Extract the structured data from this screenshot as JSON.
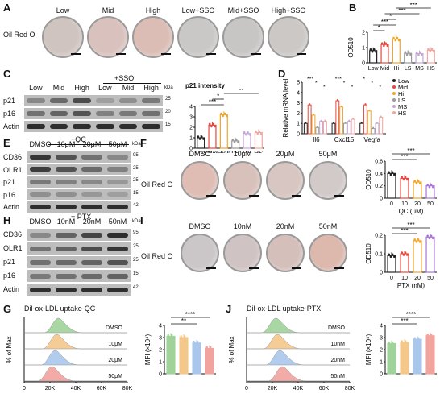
{
  "panels": {
    "A": {
      "letter": "A",
      "row_label": "Oil Red O",
      "columns": [
        "Low",
        "Mid",
        "High",
        "Low+SSO",
        "Mid+SSO",
        "High+SSO"
      ],
      "well_tints": [
        "#cfc4c0",
        "#d9c1bd",
        "#dbbdb5",
        "#c9c8c7",
        "#c8c6c5",
        "#cbc8c6"
      ]
    },
    "B": {
      "letter": "B"
    },
    "C": {
      "letter": "C",
      "group_label": "+SSO",
      "columns": [
        "Low",
        "Mid",
        "High",
        "Low",
        "Mid",
        "High"
      ],
      "rows": [
        "p21",
        "p16",
        "Actin"
      ],
      "markers": [
        "25",
        "20",
        "15",
        "42"
      ],
      "kda": "kDa"
    },
    "p21int": {
      "title": "p21 intensity"
    },
    "D": {
      "letter": "D"
    },
    "E": {
      "letter": "E",
      "group_label": "+QC",
      "columns": [
        "DMSO",
        "10μM",
        "20μM",
        "50μM"
      ],
      "rows": [
        "CD36",
        "OLR1",
        "p21",
        "p16",
        "Actin"
      ],
      "markers": [
        "95",
        "25",
        "25",
        "15",
        "42"
      ],
      "kda": "kDa"
    },
    "F": {
      "letter": "F",
      "row_label": "Oil Red O",
      "columns": [
        "DMSO",
        "10μM",
        "20μM",
        "50μM"
      ],
      "well_tints": [
        "#dfbdb4",
        "#d9c1bb",
        "#d7c6c2",
        "#d2cac8"
      ]
    },
    "H": {
      "letter": "H",
      "group_label": "+ PTX",
      "columns": [
        "DMSO",
        "10nM",
        "20nM",
        "50nM"
      ],
      "rows": [
        "CD36",
        "OLR1",
        "p21",
        "p16",
        "Actin"
      ],
      "markers": [
        "95",
        "25",
        "25",
        "15",
        "42"
      ],
      "kda": "kDa"
    },
    "I": {
      "letter": "I",
      "row_label": "Oil Red O",
      "columns": [
        "DMSO",
        "10nM",
        "20nM",
        "50nM"
      ],
      "well_tints": [
        "#cbc6c8",
        "#cfc3c3",
        "#d5bfba",
        "#dcb8ad"
      ]
    },
    "G": {
      "letter": "G",
      "title": "Dil-ox-LDL uptake-QC",
      "ylabel": "% of Max",
      "xlabel_ticks": [
        "0",
        "20K",
        "40K",
        "60K",
        "80K"
      ],
      "tracks": [
        "DMSO",
        "10μM",
        "20μM",
        "50μM"
      ],
      "track_colors": [
        "#9fd39a",
        "#f4c78a",
        "#a9c7ea",
        "#f2a39e"
      ]
    },
    "J": {
      "letter": "J",
      "title": "Dil-ox-LDL uptake-PTX",
      "ylabel": "% of Max",
      "xlabel_ticks": [
        "0",
        "20K",
        "40K",
        "60K",
        "80K"
      ],
      "tracks": [
        "DMSO",
        "10nM",
        "20nM",
        "50nM"
      ],
      "track_colors": [
        "#9fd39a",
        "#f4c78a",
        "#a9c7ea",
        "#f2a39e"
      ]
    }
  },
  "chart_data": [
    {
      "id": "B",
      "type": "bar",
      "categories": [
        "Low",
        "Mid",
        "Hi",
        "LS",
        "MS",
        "HS"
      ],
      "values": [
        0.8,
        1.2,
        1.55,
        0.62,
        0.6,
        0.82
      ],
      "ylabel": "OD510",
      "ylim": [
        0,
        2
      ],
      "yticks": [
        "0",
        "1",
        "2"
      ],
      "colors": [
        "#222222",
        "#e8463c",
        "#f0a628",
        "#9b9b9b",
        "#c6a6d8",
        "#f4a6a0"
      ],
      "sig": [
        {
          "from": 0,
          "to": 1,
          "label": "*"
        },
        {
          "from": 0,
          "to": 2,
          "label": "***"
        },
        {
          "from": 1,
          "to": 2,
          "label": "*"
        },
        {
          "from": 1,
          "to": 4,
          "label": "***"
        },
        {
          "from": 2,
          "to": 5,
          "label": "***"
        }
      ]
    },
    {
      "id": "p21",
      "type": "bar",
      "categories": [
        "Low",
        "Mid",
        "High",
        "LS",
        "MS",
        "HS"
      ],
      "values": [
        1.0,
        2.2,
        3.2,
        0.7,
        1.4,
        1.5
      ],
      "ylim": [
        0,
        4
      ],
      "yticks": [
        "0",
        "1",
        "2",
        "3",
        "4"
      ],
      "colors": [
        "#222222",
        "#e8463c",
        "#f0a628",
        "#9b9b9b",
        "#c6a6d8",
        "#f4a6a0"
      ],
      "sig": [
        {
          "from": 0,
          "to": 2,
          "label": "***"
        },
        {
          "from": 1,
          "to": 2,
          "label": "*"
        },
        {
          "from": 2,
          "to": 5,
          "label": "**"
        },
        {
          "from": 3,
          "to": 5,
          "label": "**"
        }
      ]
    },
    {
      "id": "D",
      "type": "bar",
      "groups": [
        "Il6",
        "Cxcl15",
        "Vegfa"
      ],
      "series_names": [
        "Low",
        "Mid",
        "Hi",
        "LS",
        "MS",
        "HS"
      ],
      "values": [
        [
          1.0,
          2.8,
          1.8,
          0.6,
          1.2,
          1.2
        ],
        [
          1.0,
          3.2,
          2.6,
          1.0,
          1.2,
          1.4
        ],
        [
          1.0,
          2.8,
          2.2,
          0.5,
          1.0,
          1.6
        ]
      ],
      "ylabel": "Relative mRNA level",
      "ylim": [
        0,
        5
      ],
      "yticks": [
        "0",
        "1",
        "2",
        "3",
        "4",
        "5"
      ],
      "colors": [
        "#222222",
        "#e8463c",
        "#f0a628",
        "#9b9b9b",
        "#c6a6d8",
        "#f4a6a0"
      ],
      "sig_labels": [
        "***",
        "*",
        "*",
        "***",
        "*",
        "*",
        "*",
        "*",
        "*"
      ]
    },
    {
      "id": "F",
      "type": "bar",
      "categories": [
        "0",
        "10",
        "20",
        "50"
      ],
      "values": [
        0.4,
        0.32,
        0.26,
        0.2
      ],
      "ylabel": "OD510",
      "xlabel": "QC (μM)",
      "ylim": [
        0,
        0.6
      ],
      "yticks": [
        "0",
        "0.2",
        "0.4",
        "0.6"
      ],
      "colors": [
        "#222222",
        "#e8463c",
        "#f0a628",
        "#a774d6"
      ],
      "sig": [
        {
          "from": 0,
          "to": 2,
          "label": "***"
        },
        {
          "from": 0,
          "to": 3,
          "label": "***"
        }
      ]
    },
    {
      "id": "I",
      "type": "bar",
      "categories": [
        "0",
        "10",
        "20",
        "50"
      ],
      "values": [
        0.09,
        0.1,
        0.17,
        0.19
      ],
      "ylabel": "OD510",
      "xlabel": "PTX (nM)",
      "ylim": [
        0,
        0.2
      ],
      "yticks": [
        "0",
        "0.1",
        "0.2"
      ],
      "colors": [
        "#222222",
        "#e8463c",
        "#f0a628",
        "#a774d6"
      ],
      "sig": [
        {
          "from": 0,
          "to": 2,
          "label": "***"
        },
        {
          "from": 0,
          "to": 3,
          "label": "***"
        }
      ]
    },
    {
      "id": "Gbar",
      "type": "bar",
      "categories": [
        "",
        "",
        "",
        ""
      ],
      "values": [
        3.1,
        3.0,
        2.55,
        2.1
      ],
      "ylabel": "MFI (×10⁴)",
      "ylim": [
        0,
        4
      ],
      "yticks": [
        "0",
        "1",
        "2",
        "3",
        "4"
      ],
      "colors": [
        "#9fd39a",
        "#f4c78a",
        "#a9c7ea",
        "#f2a39e"
      ],
      "sig": [
        {
          "from": 0,
          "to": 2,
          "label": "**"
        },
        {
          "from": 0,
          "to": 3,
          "label": "****"
        }
      ]
    },
    {
      "id": "Jbar",
      "type": "bar",
      "categories": [
        "",
        "",
        "",
        ""
      ],
      "values": [
        2.5,
        2.6,
        2.85,
        3.15
      ],
      "ylabel": "MFI (×10⁴)",
      "ylim": [
        0,
        4
      ],
      "yticks": [
        "0",
        "1",
        "2",
        "3",
        "4"
      ],
      "colors": [
        "#9fd39a",
        "#f4c78a",
        "#a9c7ea",
        "#f2a39e"
      ],
      "sig": [
        {
          "from": 0,
          "to": 2,
          "label": "***"
        },
        {
          "from": 0,
          "to": 3,
          "label": "****"
        }
      ]
    }
  ]
}
